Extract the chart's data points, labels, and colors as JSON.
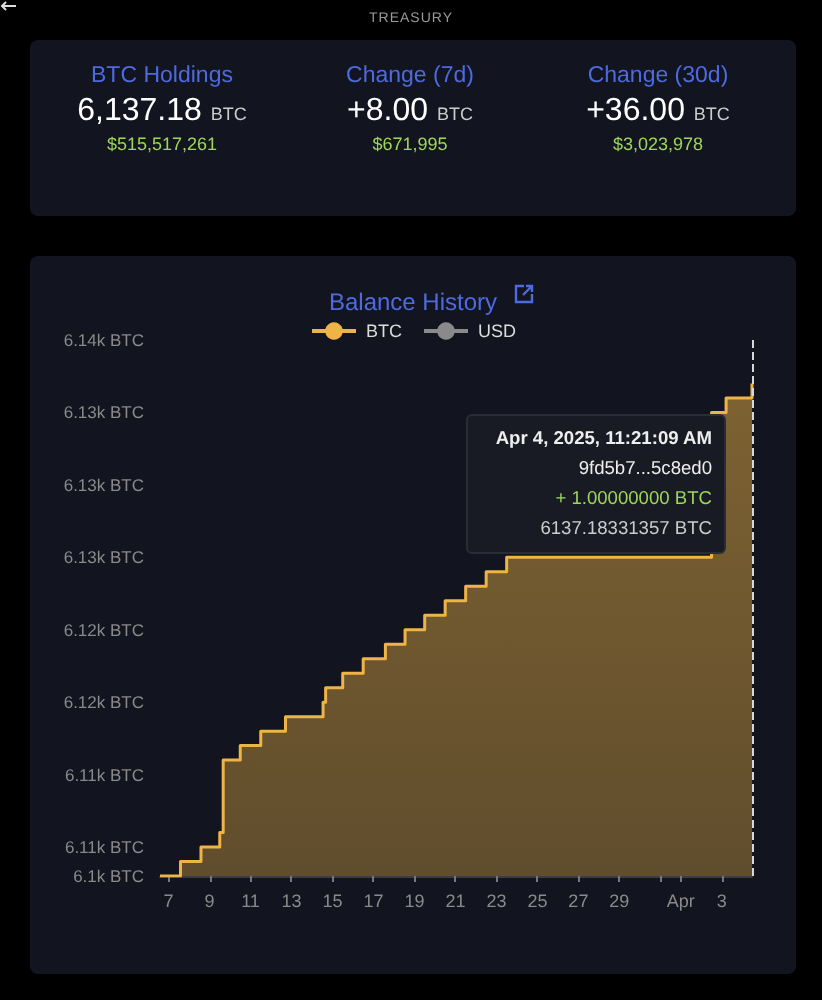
{
  "chart_data": [
    {
      "type": "other",
      "title": "TREASURY",
      "annotations": [
        "BTC Holdings",
        "6,137.18",
        "BTC",
        "$515,517,261",
        "Change (7d)",
        "+8.00",
        "BTC",
        "$671,995",
        "Change (30d)",
        "+36.00",
        "BTC",
        "$3,023,978"
      ]
    },
    {
      "type": "area",
      "title": "Balance History",
      "x": [
        "2025-03-06T14:00",
        "2025-03-07T14:00",
        "2025-03-08T14:00",
        "2025-03-09T12:00",
        "2025-03-09T16:00",
        "2025-03-10T12:00",
        "2025-03-11T12:00",
        "2025-03-12T17:00",
        "2025-03-14T13:00",
        "2025-03-14T16:00",
        "2025-03-15T12:00",
        "2025-03-16T12:00",
        "2025-03-17T14:00",
        "2025-03-18T13:00",
        "2025-03-19T12:00",
        "2025-03-20T12:00",
        "2025-03-21T12:00",
        "2025-03-22T12:00",
        "2025-03-23T12:00",
        "2025-03-24T12:00",
        "2025-03-25T12:00",
        "2025-03-26T12:00",
        "2025-03-27T12:00",
        "2025-03-28T12:00",
        "2025-03-29T12:00",
        "2025-03-30T12:00",
        "2025-03-31T12:00",
        "2025-04-01T12:00",
        "2025-04-02T12:00",
        "2025-04-03T05:00",
        "2025-04-04T11:21"
      ],
      "series": [
        {
          "name": "BTC",
          "color": "#f0b446",
          "values": [
            6103,
            6104,
            6105,
            6106,
            6111,
            6112,
            6113,
            6114,
            6115,
            6116,
            6117,
            6118,
            6119,
            6120,
            6121,
            6122,
            6123,
            6124,
            6125,
            null,
            null,
            null,
            null,
            null,
            null,
            null,
            null,
            null,
            6135,
            6136,
            6137
          ]
        },
        {
          "name": "USD",
          "color": "#8a8a8a",
          "values": [
            null,
            null,
            null,
            null,
            null,
            null,
            null,
            null,
            null,
            null,
            null,
            null,
            null,
            null,
            null,
            null,
            null,
            null,
            null,
            null,
            null,
            null,
            null,
            null,
            null,
            null,
            null,
            null,
            null,
            null,
            null
          ]
        }
      ],
      "xlim": [
        "2025-03-06T14:00",
        "2025-04-04T11:21"
      ],
      "xticks": [
        {
          "value": "2025-03-07",
          "label": "7"
        },
        {
          "value": "2025-03-09",
          "label": "9"
        },
        {
          "value": "2025-03-11",
          "label": "11"
        },
        {
          "value": "2025-03-13",
          "label": "13"
        },
        {
          "value": "2025-03-15",
          "label": "15"
        },
        {
          "value": "2025-03-17",
          "label": "17"
        },
        {
          "value": "2025-03-19",
          "label": "19"
        },
        {
          "value": "2025-03-21",
          "label": "21"
        },
        {
          "value": "2025-03-23",
          "label": "23"
        },
        {
          "value": "2025-03-25",
          "label": "25"
        },
        {
          "value": "2025-03-27",
          "label": "27"
        },
        {
          "value": "2025-03-29",
          "label": "29"
        },
        {
          "value": "2025-03-31",
          "label": null
        },
        {
          "value": "2025-04-01",
          "label": "Apr"
        },
        {
          "value": "2025-04-03",
          "label": "3"
        }
      ],
      "ylim": [
        6103,
        6140
      ],
      "yticks": [
        {
          "value": 6103,
          "label": "6.1k BTC"
        },
        {
          "value": 6105,
          "label": "6.11k BTC"
        },
        {
          "value": 6110,
          "label": "6.11k BTC"
        },
        {
          "value": 6115,
          "label": "6.12k BTC"
        },
        {
          "value": 6120,
          "label": "6.12k BTC"
        },
        {
          "value": 6125,
          "label": "6.13k BTC"
        },
        {
          "value": 6130,
          "label": "6.13k BTC"
        },
        {
          "value": 6135,
          "label": "6.13k BTC"
        },
        {
          "value": 6140,
          "label": "6.14k BTC"
        }
      ],
      "ref_lines": [
        {
          "axis": "x",
          "value": "2025-04-04T11:21",
          "label": null,
          "color": "#d8d8d8",
          "line_style": "dashed"
        }
      ],
      "annotations": [
        "Apr 4, 2025, 11:21:09 AM",
        "9fd5b7...5c8ed0",
        "+ 1.00000000 BTC",
        "6137.18331357 BTC"
      ],
      "legend": "top",
      "grid": false
    }
  ]
}
